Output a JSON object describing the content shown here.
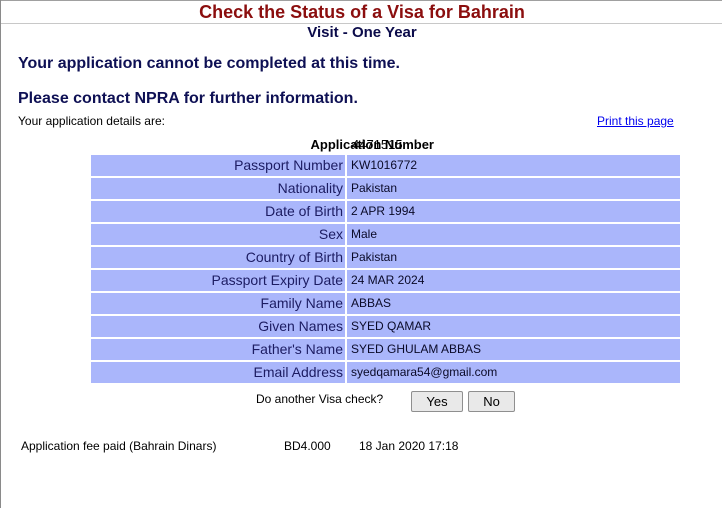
{
  "header": {
    "title": "Check the Status of a Visa for Bahrain",
    "visa_type": "Visit - One Year"
  },
  "messages": {
    "cannot_complete": "Your application cannot be completed at this time.",
    "contact": "Please contact NPRA for further information."
  },
  "details_intro": "Your application details are:",
  "print_link": "Print this page",
  "application_number": {
    "label": "Application Number",
    "value": "4471515"
  },
  "details": [
    {
      "label": "Passport Number",
      "value": "KW1016772"
    },
    {
      "label": "Nationality",
      "value": "Pakistan"
    },
    {
      "label": "Date of Birth",
      "value": "2 APR 1994"
    },
    {
      "label": "Sex",
      "value": "Male"
    },
    {
      "label": "Country of Birth",
      "value": "Pakistan"
    },
    {
      "label": "Passport Expiry Date",
      "value": "24 MAR 2024"
    },
    {
      "label": "Family Name",
      "value": "ABBAS"
    },
    {
      "label": "Given Names",
      "value": "SYED QAMAR"
    },
    {
      "label": "Father's Name",
      "value": "SYED GHULAM ABBAS"
    },
    {
      "label": "Email Address",
      "value": "syedqamara54@gmail.com"
    }
  ],
  "another_check": {
    "question": "Do another Visa check?",
    "yes_label": "Yes",
    "no_label": "No"
  },
  "fee": {
    "label": "Application fee paid (Bahrain Dinars)",
    "amount": "BD4.000",
    "date": "18 Jan 2020 17:18"
  },
  "colors": {
    "title": "#8b0e0e",
    "message": "#0e1054",
    "row_background": "#aab6fb",
    "link": "#0000ee"
  }
}
